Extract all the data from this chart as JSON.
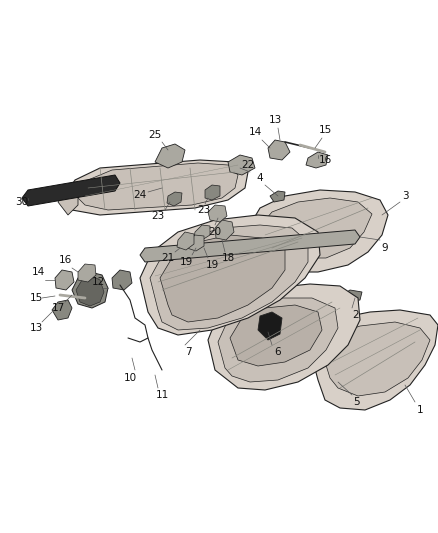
{
  "bg_color": "#ffffff",
  "fig_width": 4.38,
  "fig_height": 5.33,
  "dpi": 100,
  "lc": "#222222",
  "fc_hood": "#d8d0c8",
  "fc_hood2": "#c8c0b8",
  "fc_dark": "#888880",
  "fc_black": "#1a1a1a",
  "fc_gray": "#aaa8a0",
  "fc_mid": "#b8b0a8",
  "fc_light": "#e0d8d0"
}
